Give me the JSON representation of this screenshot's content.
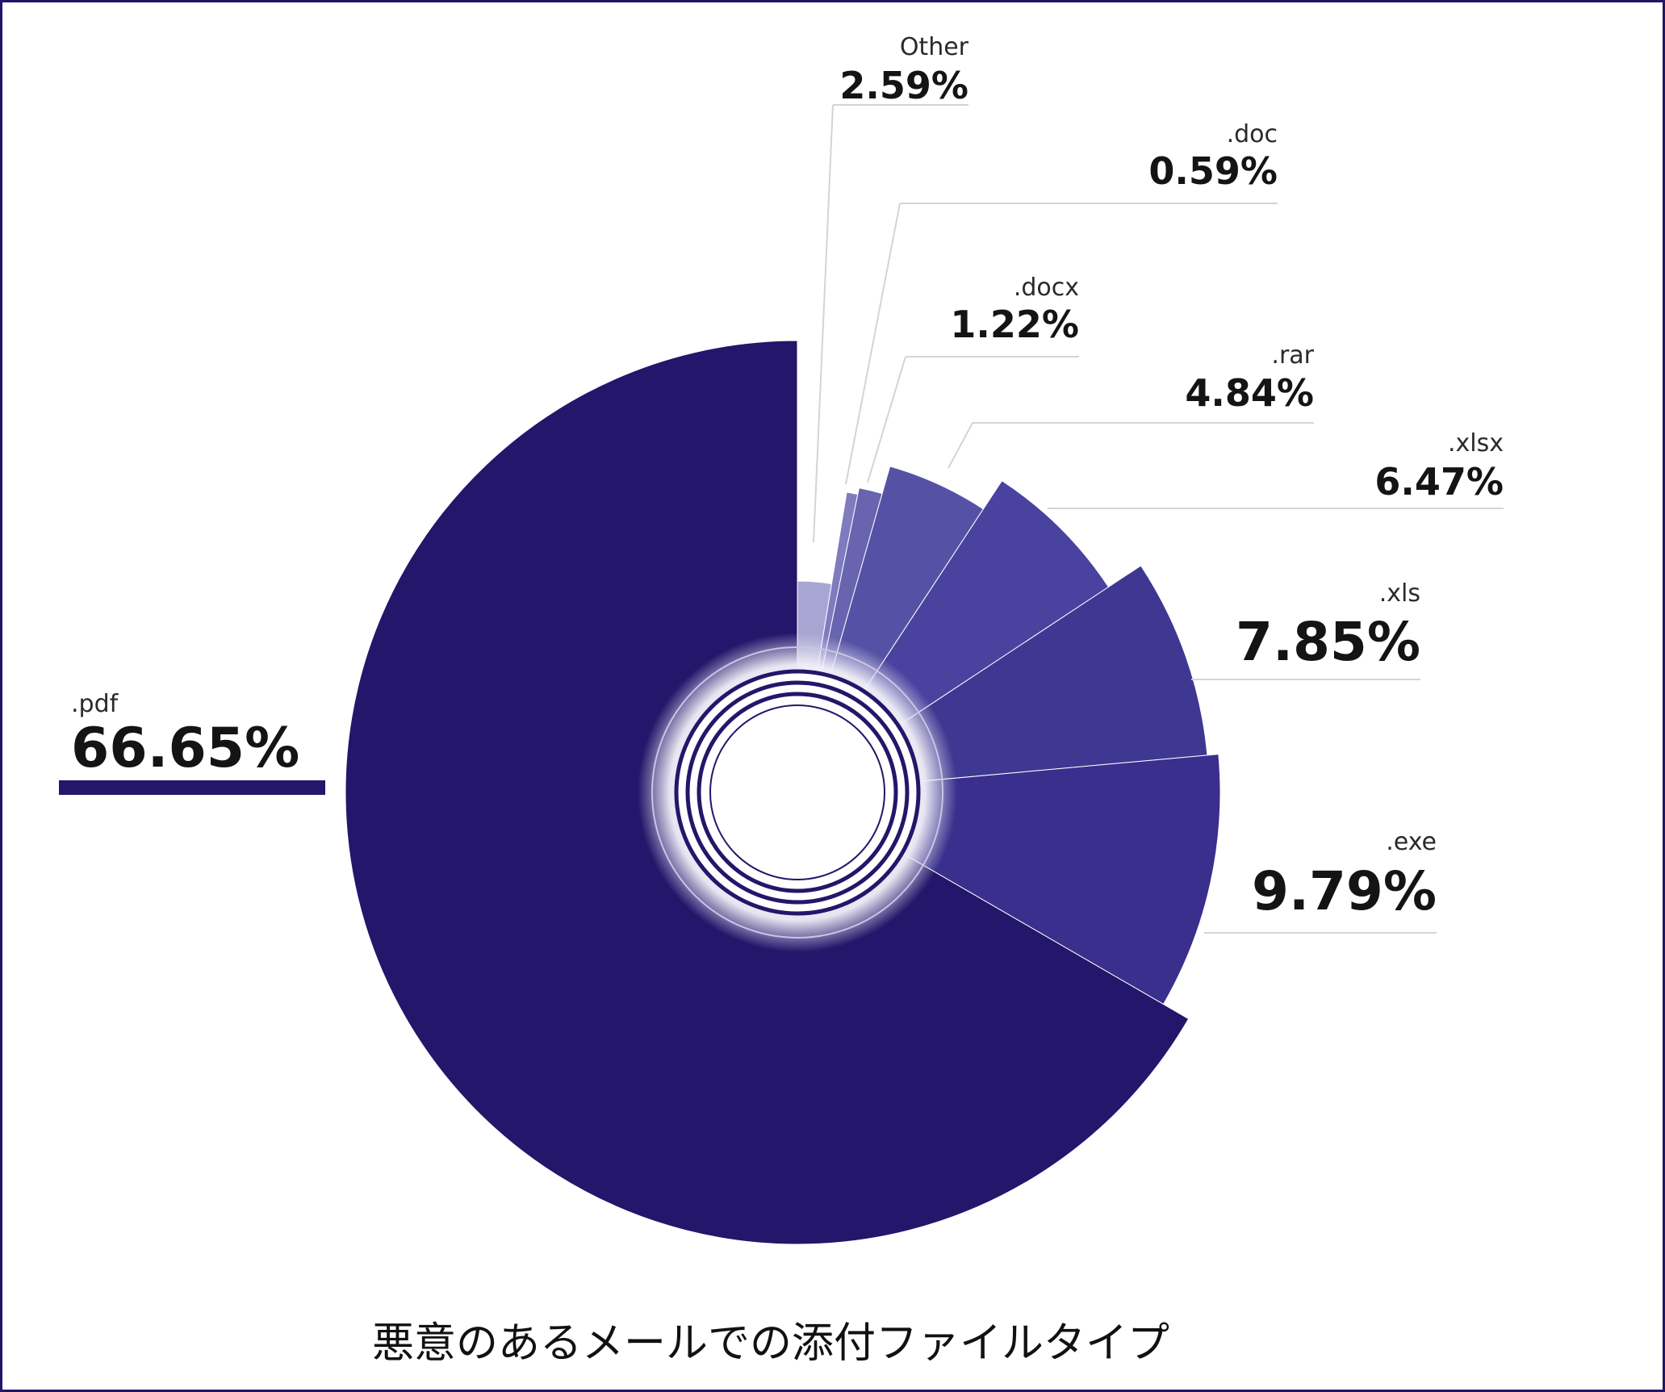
{
  "caption": "悪意のあるメールでの添付ファイルタイプ",
  "colors": {
    "pdf": "#24166a",
    "exe": "#3a2f8c",
    "xls": "#3f3892",
    "xlsx": "#4a429f",
    "rar": "#5552a6",
    "docx": "#6864b0",
    "doc": "#7f7bbe",
    "other": "#a9a5d2",
    "frame": "#221566",
    "leader": "#d4d4d4"
  },
  "chart_data": {
    "type": "pie",
    "title": "",
    "unit": "%",
    "slices": [
      {
        "label": ".pdf",
        "value": 66.65,
        "display": "66.65%"
      },
      {
        "label": ".exe",
        "value": 9.79,
        "display": "9.79%"
      },
      {
        "label": ".xls",
        "value": 7.85,
        "display": "7.85%"
      },
      {
        "label": ".xlsx",
        "value": 6.47,
        "display": "6.47%"
      },
      {
        "label": ".rar",
        "value": 4.84,
        "display": "4.84%"
      },
      {
        "label": ".docx",
        "value": 1.22,
        "display": "1.22%"
      },
      {
        "label": ".doc",
        "value": 0.59,
        "display": "0.59%"
      },
      {
        "label": "Other",
        "value": 2.59,
        "display": "2.59%"
      }
    ]
  }
}
